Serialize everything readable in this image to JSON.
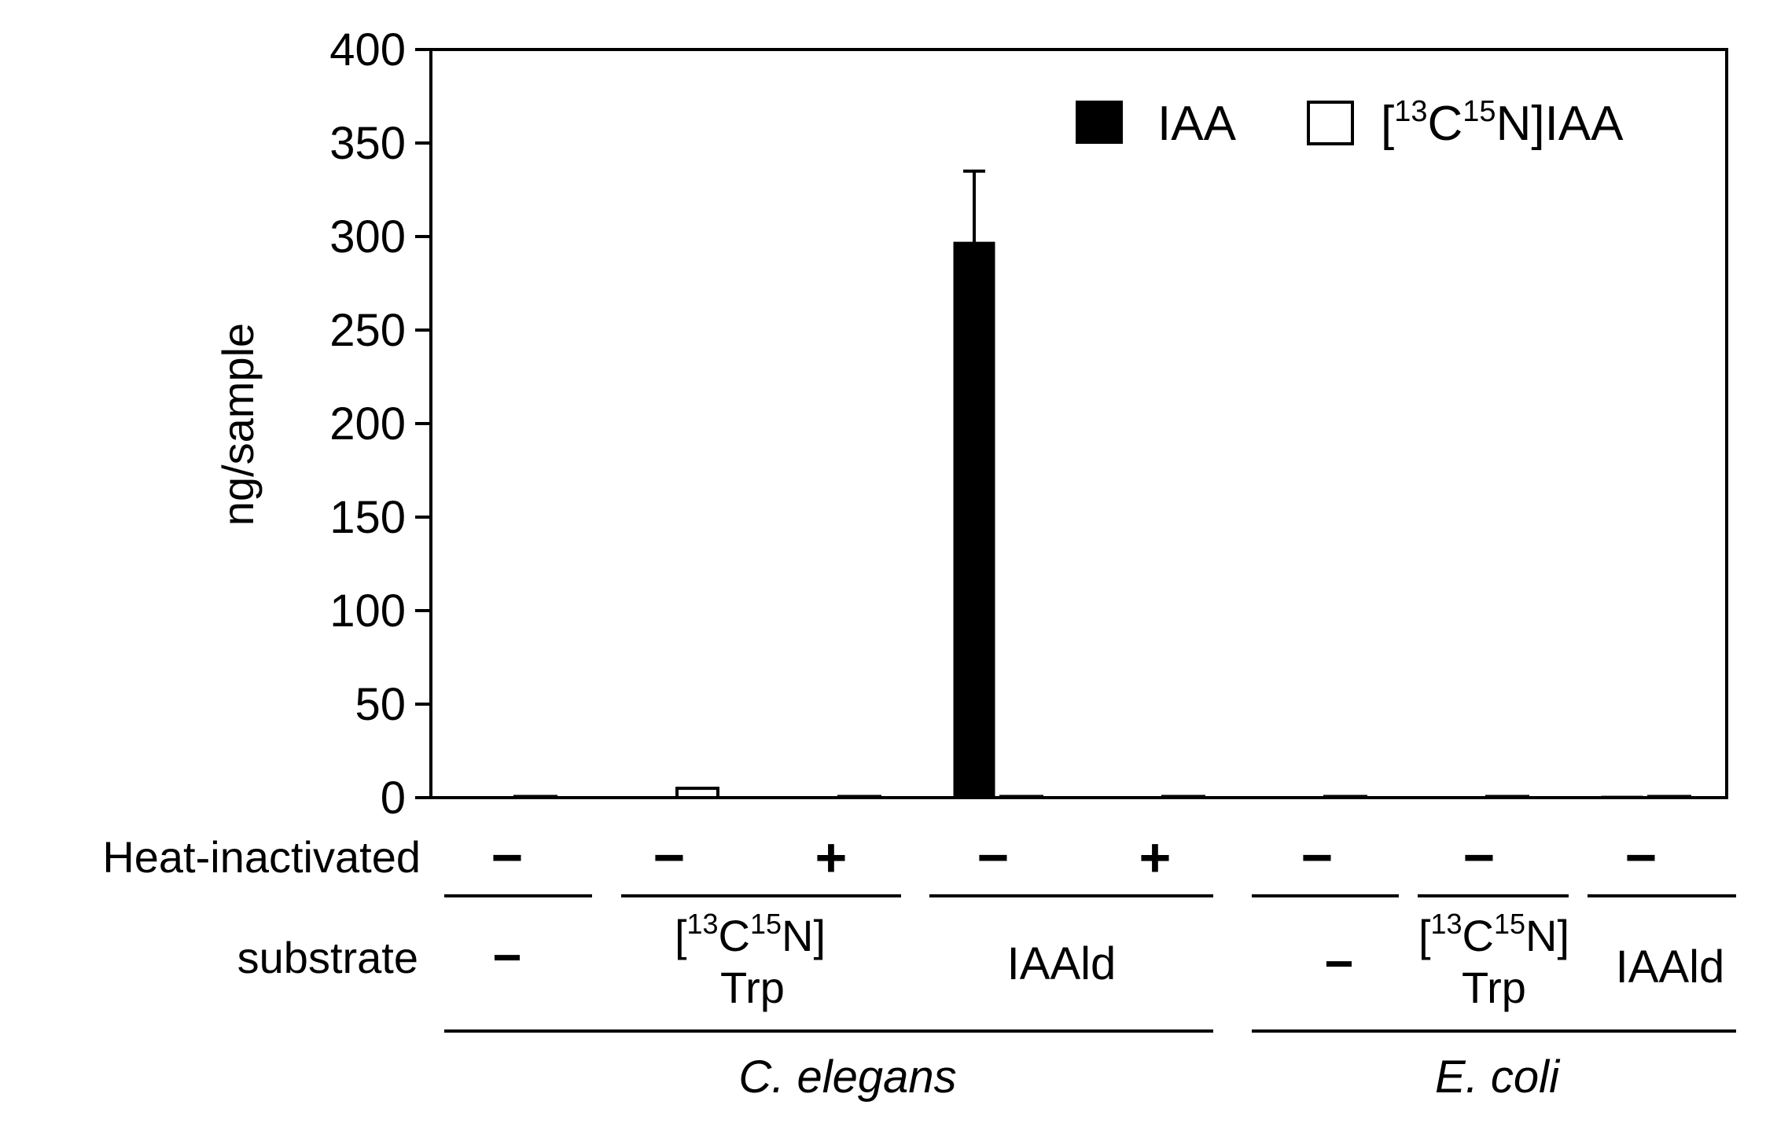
{
  "chart_data": {
    "type": "bar",
    "ylabel": "ng/sample",
    "ylim": [
      0,
      400
    ],
    "yticks": [
      "0",
      "50",
      "100",
      "150",
      "200",
      "250",
      "300",
      "350",
      "400"
    ],
    "series": [
      {
        "name": "IAA",
        "color": "#000000",
        "values": [
          0.5,
          0.5,
          0.5,
          297,
          0.5,
          0.5,
          0.5,
          0.8
        ]
      },
      {
        "name": "[13C15N]IAA",
        "color": "#ffffff",
        "values": [
          0.2,
          5,
          0.2,
          0.2,
          0.2,
          0.2,
          0.2,
          0.2
        ]
      }
    ],
    "errors": {
      "IAA": [
        0,
        0,
        0,
        38,
        0,
        0,
        0,
        0
      ]
    },
    "legend": {
      "position": "top-right",
      "iaa_label": "IAA",
      "labeled_parts": {
        "open": "[",
        "sup1": "13",
        "mid": "C",
        "sup2": "15",
        "close": "N]IAA"
      }
    },
    "rows": {
      "heat_label": "Heat-inactivated",
      "heat_values": [
        "−",
        "−",
        "+",
        "−",
        "+",
        "−",
        "−",
        "−"
      ],
      "substrate_label": "substrate",
      "substrates": [
        {
          "text": "−"
        },
        {
          "line1_open": "[",
          "line1_sup1": "13",
          "line1_mid": "C",
          "line1_sup2": "15",
          "line1_close": "N]",
          "line2": "Trp"
        },
        {
          "text": "IAAld"
        },
        {
          "text": "−"
        },
        {
          "line1_open": "[",
          "line1_sup1": "13",
          "line1_mid": "C",
          "line1_sup2": "15",
          "line1_close": "N]",
          "line2": "Trp"
        },
        {
          "text": "IAAld"
        }
      ],
      "organisms": [
        "C. elegans",
        "E. coli"
      ]
    }
  }
}
